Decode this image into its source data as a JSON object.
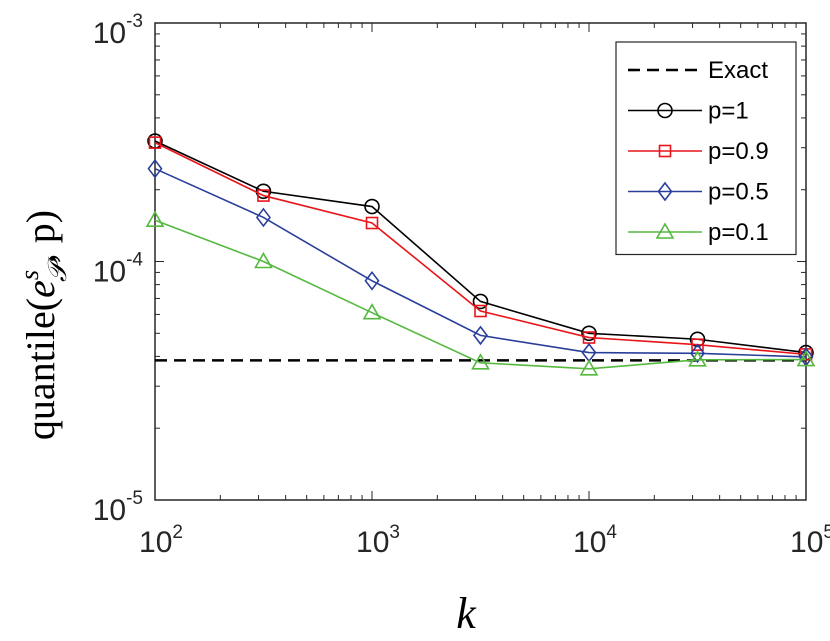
{
  "chart_data": {
    "type": "line",
    "xscale": "log",
    "yscale": "log",
    "xlim": [
      100,
      100000
    ],
    "ylim": [
      1e-05,
      0.001
    ],
    "xlabel": "k",
    "ylabel": "quantile(e^s_P, p)",
    "ylabel_parts": {
      "pre": "quantile(",
      "e": "e",
      "sup": "s",
      "sub": "𝒫",
      "post": ", p)"
    },
    "x_ticks": [
      {
        "value": 100,
        "base": "10",
        "exp": "2"
      },
      {
        "value": 1000,
        "base": "10",
        "exp": "3"
      },
      {
        "value": 10000,
        "base": "10",
        "exp": "4"
      },
      {
        "value": 100000,
        "base": "10",
        "exp": "5"
      }
    ],
    "y_ticks": [
      {
        "value": 1e-05,
        "base": "10",
        "exp": "-5"
      },
      {
        "value": 0.0001,
        "base": "10",
        "exp": "-4"
      },
      {
        "value": 0.001,
        "base": "10",
        "exp": "-3"
      }
    ],
    "grid": false,
    "legend_position": "top-right",
    "x": [
      100,
      316,
      1000,
      3162,
      10000,
      31623,
      100000
    ],
    "series": [
      {
        "name": "Exact",
        "color": "#000000",
        "dash": "dashed",
        "marker": "none",
        "values": [
          3.85e-05,
          3.85e-05,
          3.85e-05,
          3.85e-05,
          3.85e-05,
          3.85e-05,
          3.85e-05
        ]
      },
      {
        "name": "p=1",
        "color": "#000000",
        "dash": "solid",
        "marker": "circle",
        "values": [
          0.00032,
          0.000197,
          0.00017,
          6.8e-05,
          5e-05,
          4.72e-05,
          4.15e-05
        ]
      },
      {
        "name": "p=0.9",
        "color": "#e8151b",
        "dash": "solid",
        "marker": "square",
        "values": [
          0.000315,
          0.000189,
          0.000145,
          6.2e-05,
          4.8e-05,
          4.48e-05,
          4.08e-05
        ]
      },
      {
        "name": "p=0.5",
        "color": "#2a3f9c",
        "dash": "solid",
        "marker": "diamond",
        "values": [
          0.000245,
          0.000153,
          8.3e-05,
          4.9e-05,
          4.15e-05,
          4.12e-05,
          3.98e-05
        ]
      },
      {
        "name": "p=0.1",
        "color": "#55b93f",
        "dash": "solid",
        "marker": "triangle",
        "values": [
          0.000149,
          0.0001,
          6.1e-05,
          3.76e-05,
          3.55e-05,
          3.87e-05,
          3.88e-05
        ]
      }
    ]
  }
}
